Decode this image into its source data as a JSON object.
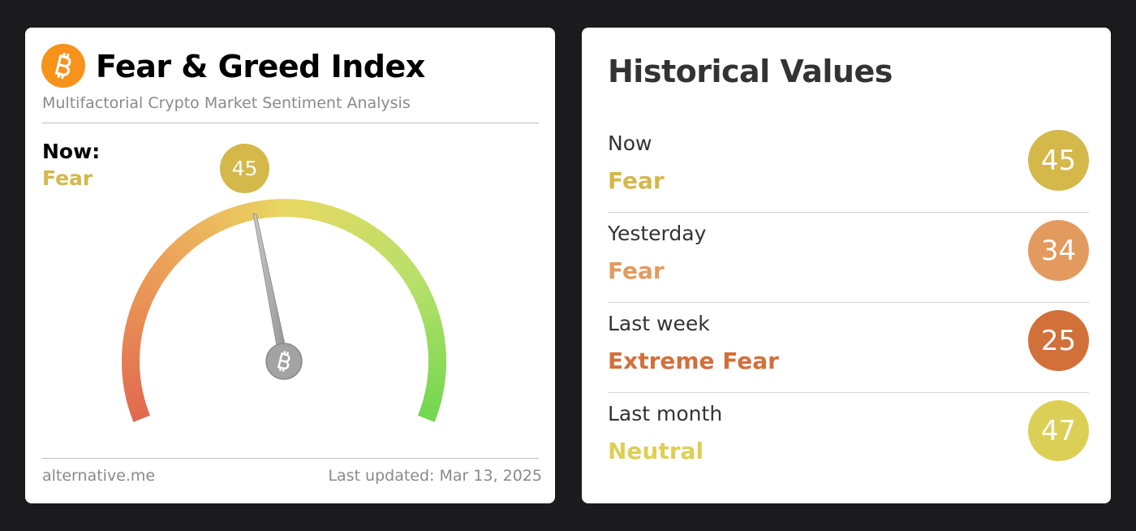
{
  "gauge": {
    "title": "Fear & Greed Index",
    "subtitle": "Multifactorial Crypto Market Sentiment Analysis",
    "now_label": "Now:",
    "classification": "Fear",
    "value": 45,
    "color": "#d4b84a",
    "range": [
      0,
      100
    ],
    "source": "alternative.me",
    "updated": "Last updated: Mar 13, 2025"
  },
  "history": {
    "title": "Historical Values",
    "rows": [
      {
        "label": "Now",
        "classification": "Fear",
        "value": 45,
        "color": "#d4b84a"
      },
      {
        "label": "Yesterday",
        "classification": "Fear",
        "value": 34,
        "color": "#e39a5f"
      },
      {
        "label": "Last week",
        "classification": "Extreme Fear",
        "value": 25,
        "color": "#d2703a"
      },
      {
        "label": "Last month",
        "classification": "Neutral",
        "value": 47,
        "color": "#dccf55"
      }
    ]
  }
}
